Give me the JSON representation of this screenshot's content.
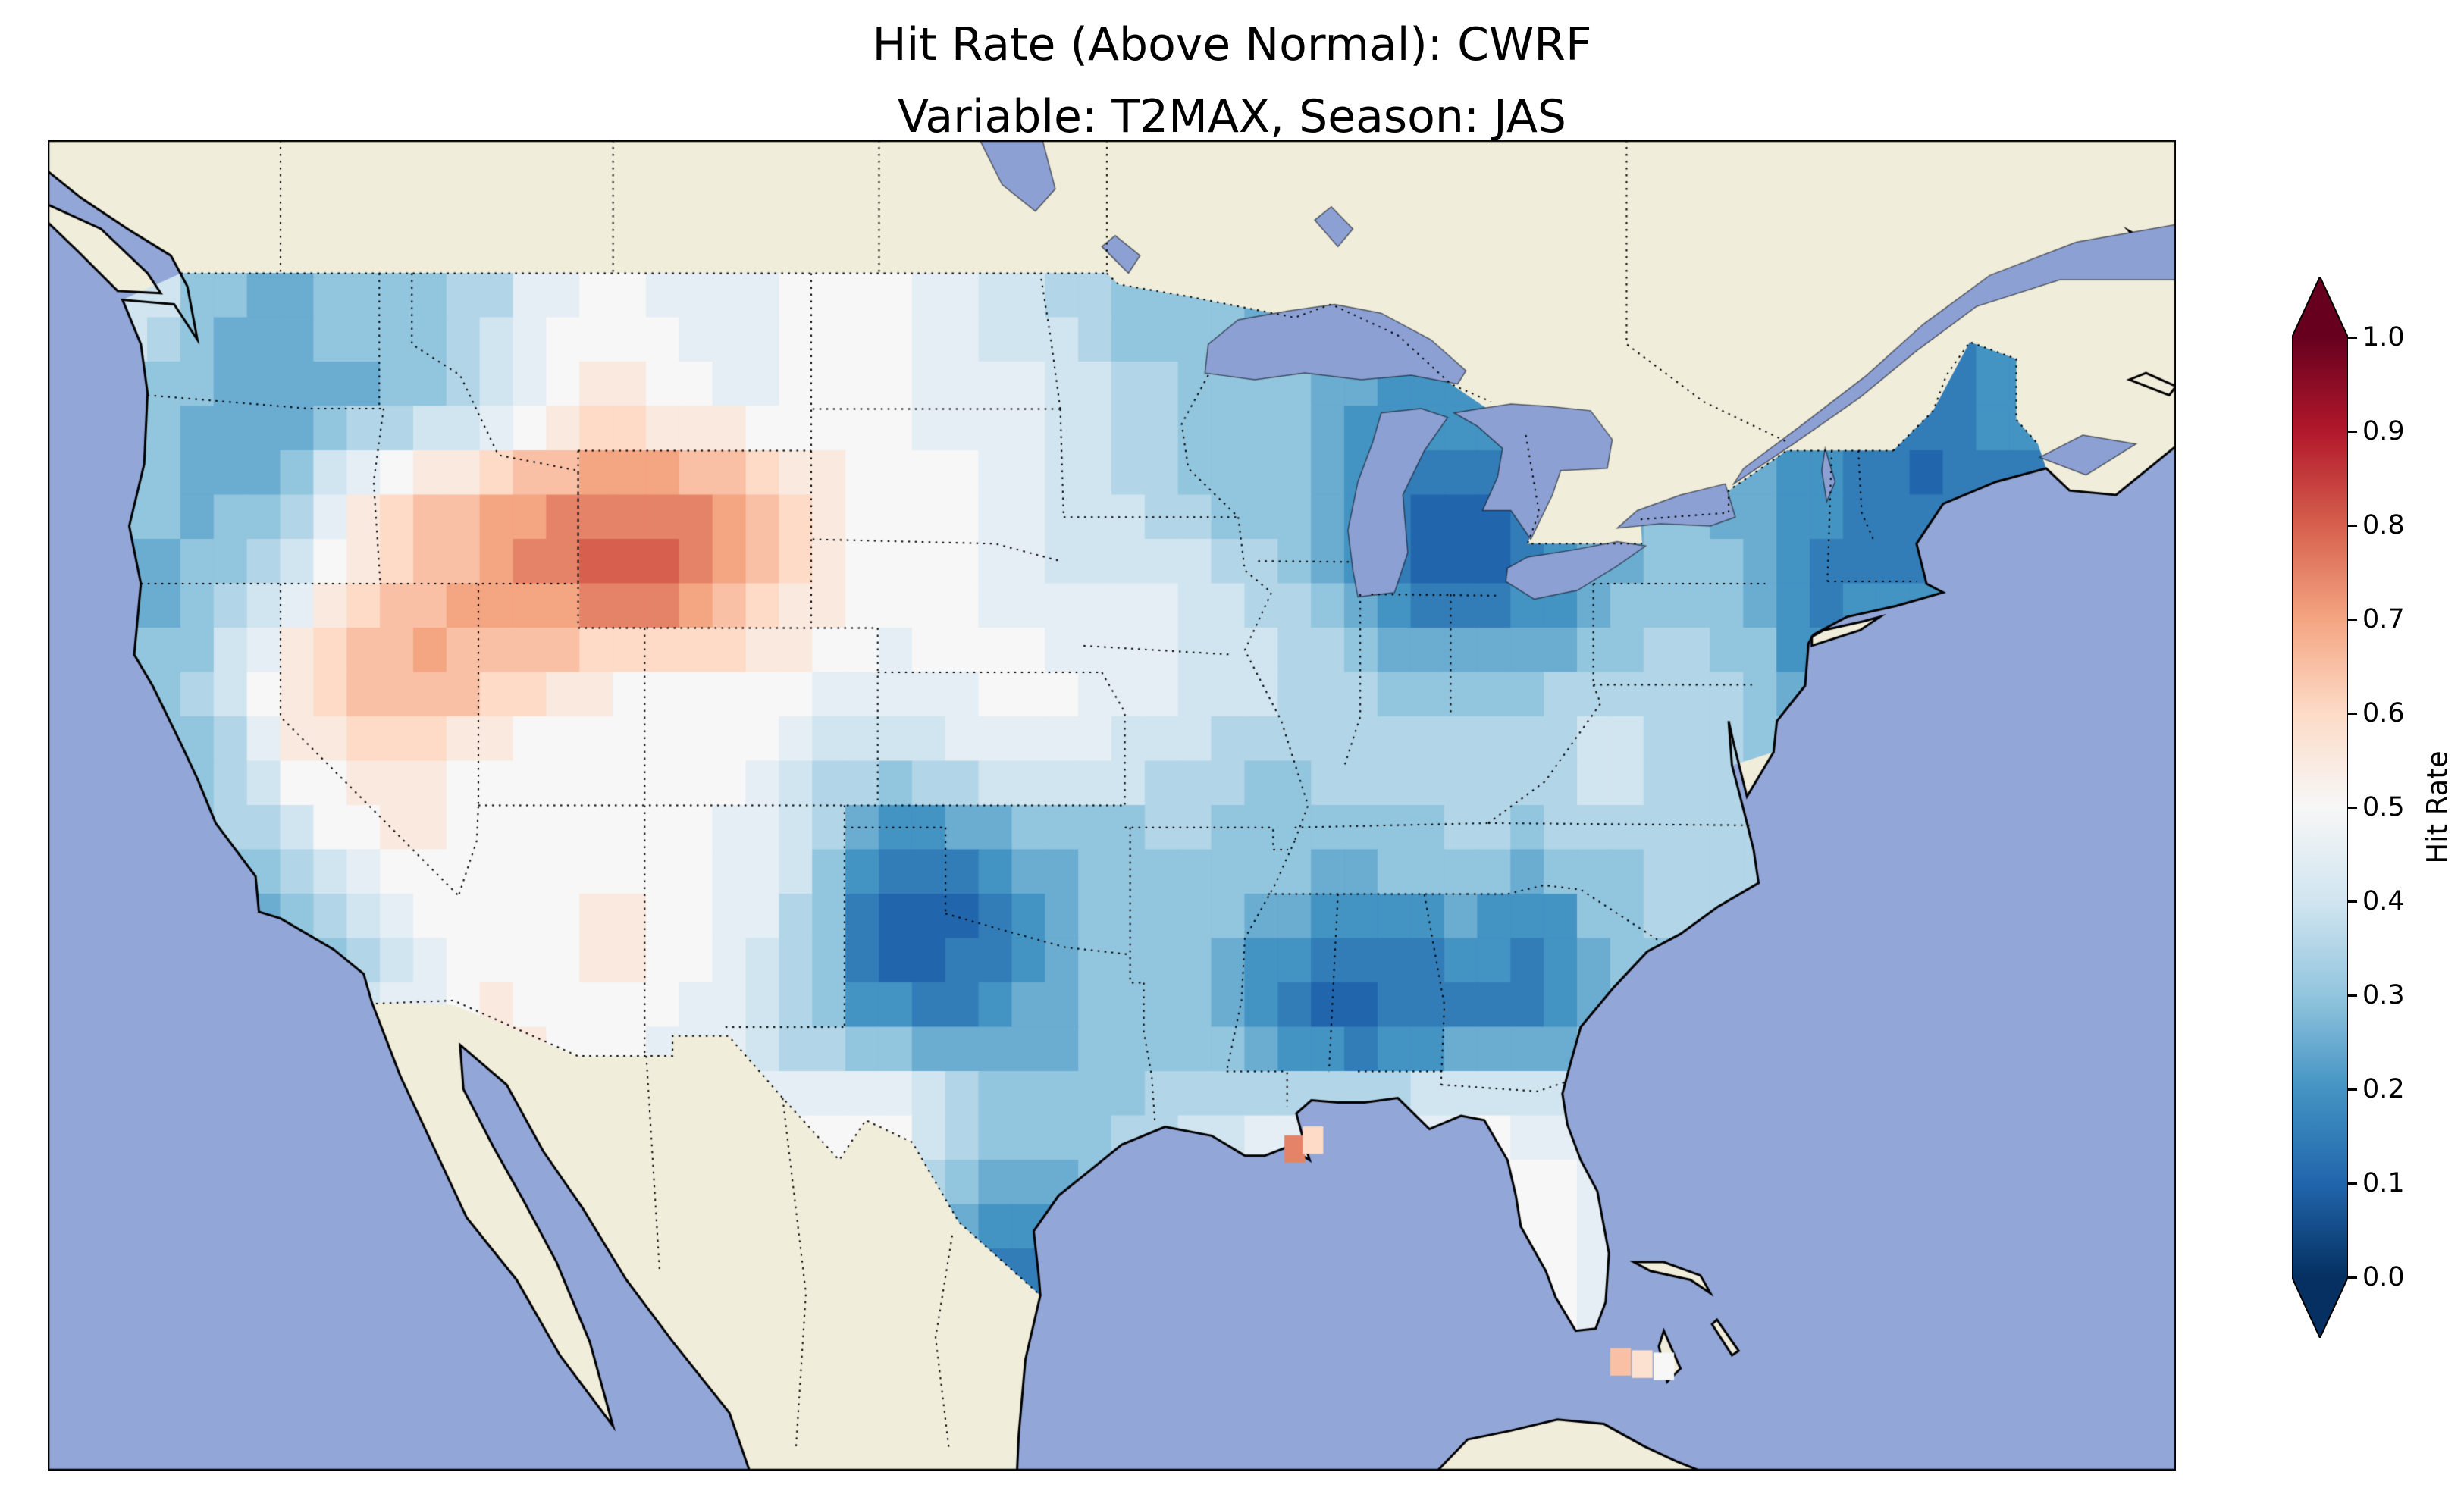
{
  "title": {
    "line1": "Hit Rate (Above Normal): CWRF",
    "line2": "Variable: T2MAX, Season: JAS"
  },
  "colorbar": {
    "label": "Hit Rate",
    "orientation": "vertical",
    "extend": "both",
    "colormap": "RdBu_r",
    "colormap_stops": [
      "#053061",
      "#2166ac",
      "#4393c3",
      "#92c5de",
      "#d1e5f0",
      "#f7f7f7",
      "#fddbc7",
      "#f4a582",
      "#d6604d",
      "#b2182b",
      "#67001f"
    ],
    "ticks": [
      {
        "label": "1.0",
        "value": 1.0
      },
      {
        "label": "0.9",
        "value": 0.9
      },
      {
        "label": "0.8",
        "value": 0.8
      },
      {
        "label": "0.7",
        "value": 0.7
      },
      {
        "label": "0.6",
        "value": 0.6
      },
      {
        "label": "0.5",
        "value": 0.5
      },
      {
        "label": "0.4",
        "value": 0.4
      },
      {
        "label": "0.3",
        "value": 0.3
      },
      {
        "label": "0.2",
        "value": 0.2
      },
      {
        "label": "0.1",
        "value": 0.1
      },
      {
        "label": "0.0",
        "value": 0.0
      }
    ]
  },
  "map": {
    "ocean_color": "#92a6d8",
    "land_color": "#f0eddb",
    "lake_color": "#8ca0d4",
    "coastline_color": "#000000",
    "border_line_style": "dotted"
  },
  "chart_data": {
    "type": "heatmap",
    "metric": "Hit Rate (Above Normal)",
    "model": "CWRF",
    "variable": "T2MAX",
    "season": "JAS",
    "title": "Hit Rate (Above Normal): CWRF — Variable: T2MAX, Season: JAS",
    "colorbar_label": "Hit Rate",
    "value_range": [
      0.0,
      1.0
    ],
    "level_step": 0.05,
    "region": "Contiguous United States",
    "grid": {
      "lon_step": 2,
      "lat_step": -2,
      "lons": [
        -124,
        -122,
        -120,
        -118,
        -116,
        -114,
        -112,
        -110,
        -108,
        -106,
        -104,
        -102,
        -100,
        -98,
        -96,
        -94,
        -92,
        -90,
        -88,
        -86,
        -84,
        -82,
        -80,
        -78,
        -76,
        -74,
        -72,
        -70,
        -68
      ],
      "lats": [
        48,
        46,
        44,
        42,
        40,
        38,
        36,
        34,
        32,
        30,
        28,
        26
      ],
      "values": [
        [
          0.4,
          0.3,
          0.25,
          0.3,
          0.3,
          0.35,
          0.45,
          0.5,
          0.45,
          0.45,
          0.5,
          0.5,
          0.45,
          0.4,
          0.35,
          0.3,
          0.3,
          0.25,
          null,
          null,
          null,
          null,
          null,
          null,
          null,
          null,
          null,
          null,
          null
        ],
        [
          0.3,
          0.25,
          0.2,
          0.25,
          0.3,
          0.35,
          0.5,
          0.55,
          0.5,
          0.45,
          0.5,
          0.5,
          0.45,
          0.45,
          0.4,
          0.35,
          0.3,
          0.3,
          0.25,
          0.2,
          0.2,
          null,
          null,
          null,
          null,
          null,
          null,
          0.15,
          0.2
        ],
        [
          0.3,
          0.25,
          0.3,
          0.5,
          0.6,
          0.65,
          0.7,
          0.75,
          0.75,
          0.7,
          0.55,
          0.5,
          0.5,
          0.45,
          0.4,
          0.35,
          0.3,
          0.3,
          0.2,
          0.12,
          0.1,
          0.2,
          null,
          0.3,
          0.25,
          0.2,
          0.15,
          0.1,
          0.15
        ],
        [
          0.25,
          0.3,
          0.4,
          0.55,
          0.65,
          0.7,
          0.75,
          0.8,
          0.8,
          0.65,
          0.55,
          0.5,
          0.5,
          0.45,
          0.4,
          0.45,
          0.4,
          0.35,
          0.25,
          0.1,
          0.1,
          0.15,
          0.25,
          0.3,
          0.3,
          0.15,
          0.18,
          0.2,
          null
        ],
        [
          0.3,
          0.35,
          0.55,
          0.65,
          0.7,
          0.65,
          0.6,
          0.55,
          0.5,
          0.55,
          0.5,
          0.45,
          0.48,
          0.5,
          0.48,
          0.45,
          0.4,
          0.4,
          0.35,
          0.3,
          0.3,
          0.3,
          0.32,
          0.35,
          0.32,
          0.2,
          0.25,
          null,
          null
        ],
        [
          null,
          0.3,
          0.5,
          0.55,
          0.55,
          0.5,
          0.48,
          0.48,
          0.5,
          0.48,
          0.4,
          0.35,
          0.42,
          0.45,
          0.45,
          0.4,
          0.35,
          0.32,
          0.35,
          0.33,
          0.35,
          0.38,
          0.4,
          0.38,
          0.35,
          null,
          null,
          null,
          null
        ],
        [
          null,
          null,
          0.35,
          0.5,
          0.55,
          0.5,
          0.48,
          0.52,
          0.5,
          0.45,
          0.35,
          0.18,
          0.15,
          0.22,
          0.28,
          0.3,
          0.32,
          0.3,
          0.3,
          0.32,
          0.32,
          0.3,
          0.32,
          0.35,
          0.35,
          null,
          null,
          null,
          null
        ],
        [
          null,
          null,
          0.25,
          0.3,
          0.45,
          0.5,
          0.52,
          0.55,
          0.5,
          0.45,
          0.35,
          0.08,
          0.08,
          0.18,
          0.28,
          0.3,
          0.28,
          0.22,
          0.15,
          0.18,
          0.2,
          0.15,
          0.3,
          0.33,
          null,
          null,
          null,
          null,
          null
        ],
        [
          null,
          null,
          null,
          null,
          0.45,
          0.55,
          0.52,
          0.5,
          0.46,
          0.42,
          0.3,
          0.22,
          0.18,
          0.22,
          0.28,
          0.28,
          0.28,
          0.15,
          0.08,
          0.12,
          0.15,
          0.18,
          0.3,
          null,
          null,
          null,
          null,
          null,
          null
        ],
        [
          null,
          null,
          null,
          null,
          null,
          null,
          null,
          null,
          null,
          null,
          0.5,
          0.55,
          0.4,
          0.3,
          0.3,
          0.35,
          0.4,
          0.45,
          0.42,
          0.45,
          0.48,
          0.45,
          0.42,
          null,
          null,
          null,
          null,
          null,
          null
        ],
        [
          null,
          null,
          null,
          null,
          null,
          null,
          null,
          null,
          null,
          null,
          null,
          null,
          0.3,
          0.22,
          null,
          null,
          null,
          null,
          null,
          null,
          null,
          0.5,
          0.45,
          null,
          null,
          null,
          null,
          null,
          null
        ],
        [
          null,
          null,
          null,
          null,
          null,
          null,
          null,
          null,
          null,
          null,
          null,
          null,
          null,
          0.12,
          null,
          null,
          null,
          null,
          null,
          null,
          null,
          0.5,
          0.45,
          null,
          null,
          null,
          null,
          null,
          null
        ]
      ]
    },
    "highlights": [
      {
        "lon": -89.5,
        "lat": 29.25,
        "value": 0.75
      },
      {
        "lon": -88.95,
        "lat": 29.45,
        "value": 0.6
      },
      {
        "lon": -79.7,
        "lat": 24.45,
        "value": 0.65
      },
      {
        "lon": -79.05,
        "lat": 24.4,
        "value": 0.58
      },
      {
        "lon": -78.4,
        "lat": 24.35,
        "value": 0.5
      }
    ]
  }
}
